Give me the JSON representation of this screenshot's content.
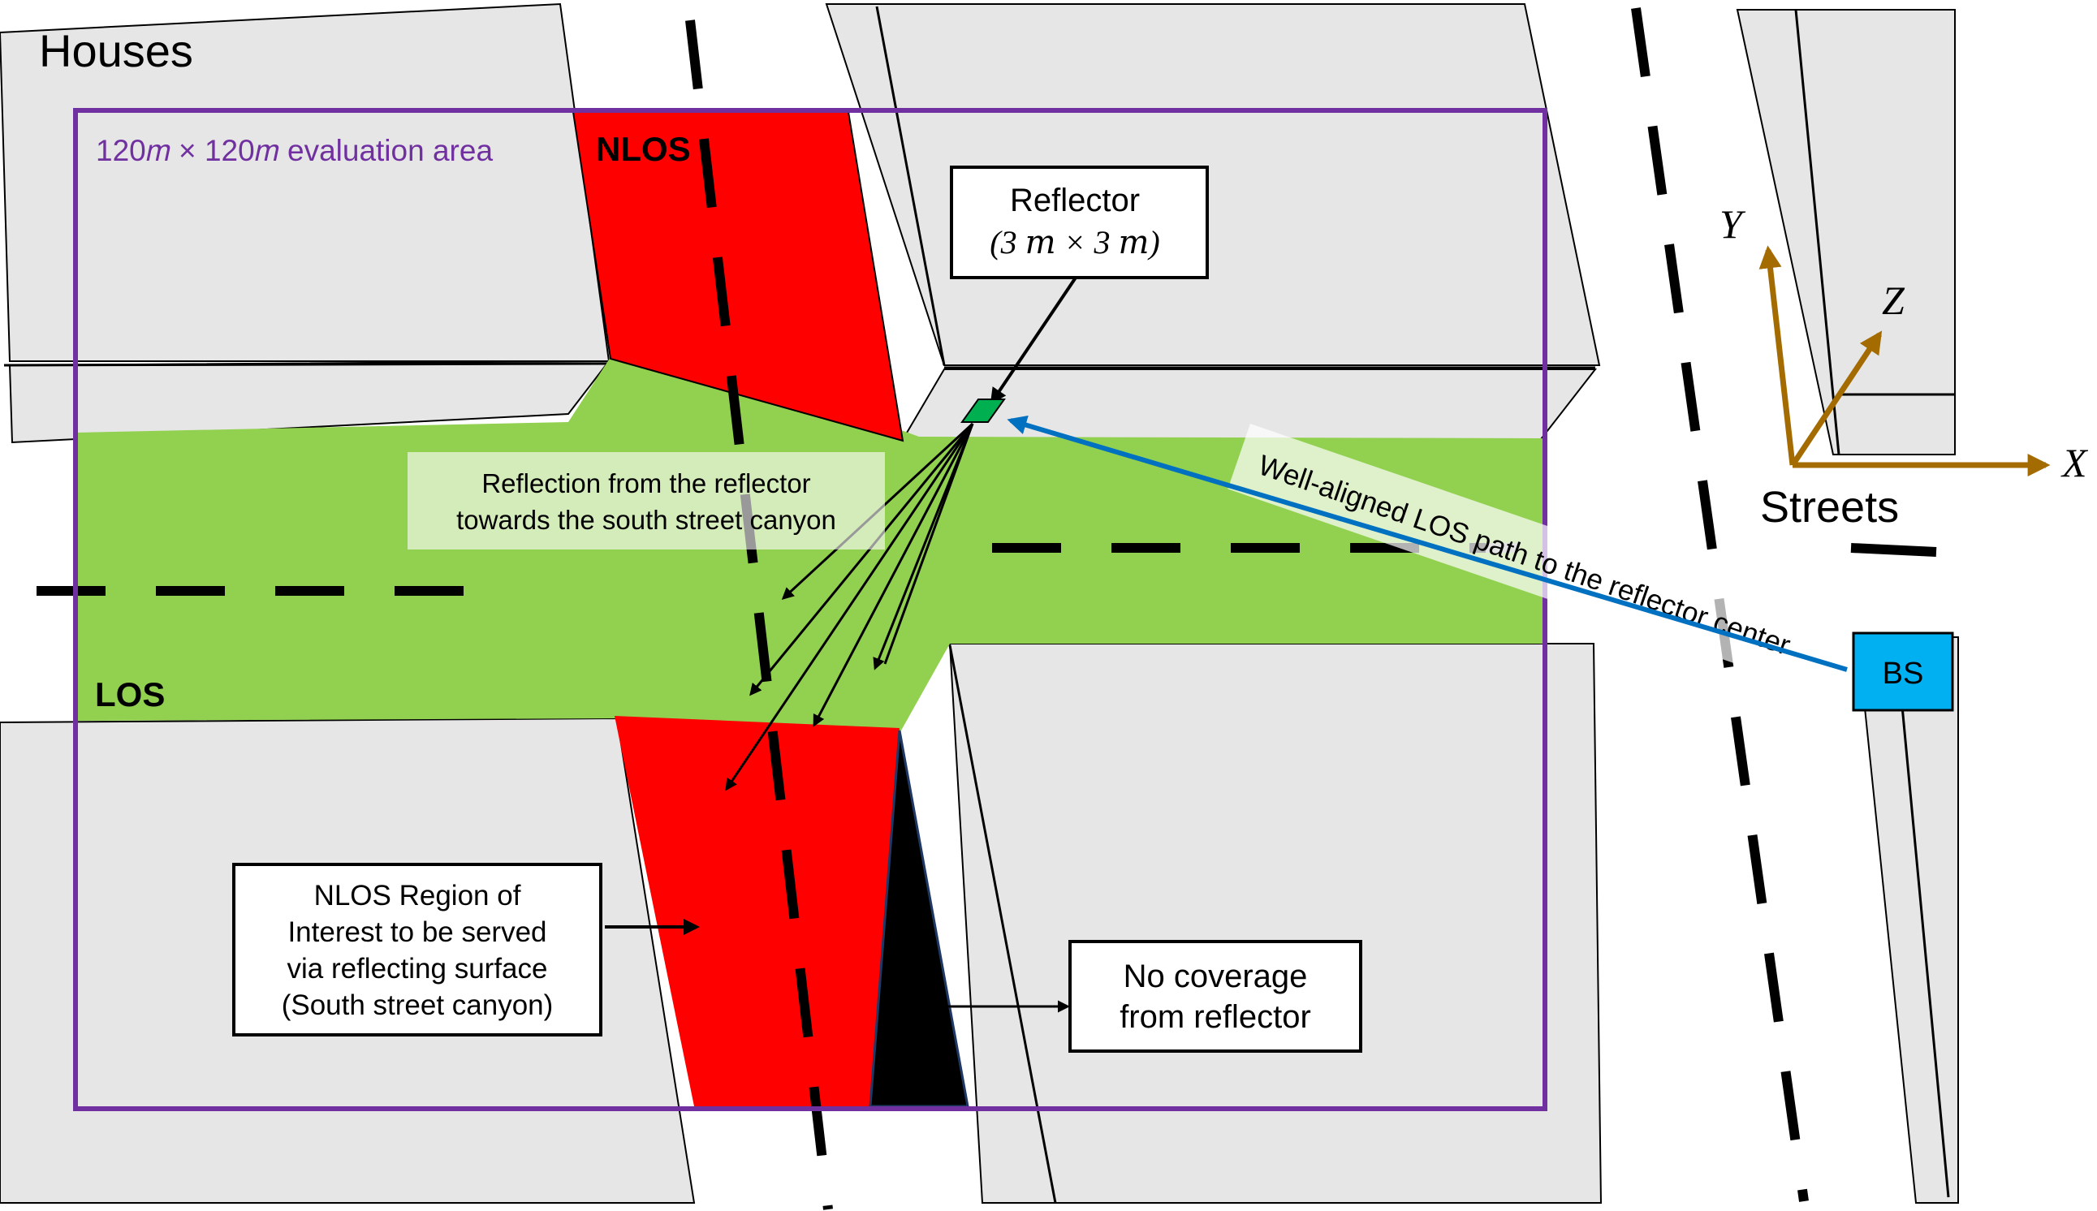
{
  "labels": {
    "houses": "Houses",
    "streets": "Streets",
    "eval_area": "120𝑚 × 120𝑚 evaluation area",
    "nlos_top": "NLOS",
    "los": "LOS",
    "reflector_line1": "Reflector",
    "reflector_line2": "(3 𝑚 × 3 𝑚)",
    "reflection_line1": "Reflection from the reflector",
    "reflection_line2": "towards the south street canyon",
    "los_path": "Well-aligned LOS path to the reflector center",
    "bs": "BS",
    "nlos_region_line1": "NLOS Region of",
    "nlos_region_line2": "Interest to be served",
    "nlos_region_line3": "via reflecting surface",
    "nlos_region_line4": "(South street canyon)",
    "no_coverage_line1": "No coverage",
    "no_coverage_line2": "from reflector",
    "axis_x": "X",
    "axis_y": "Y",
    "axis_z": "Z"
  },
  "colors": {
    "house_fill": "#e6e6e6",
    "los_green": "#92d050",
    "nlos_red": "#ff0000",
    "eval_area_border": "#7030a0",
    "reflector_green": "#00b050",
    "bs_blue": "#00b0f0",
    "los_path_blue": "#0070c0",
    "axis_brown": "#a36b00",
    "shadow_black": "#000000"
  }
}
